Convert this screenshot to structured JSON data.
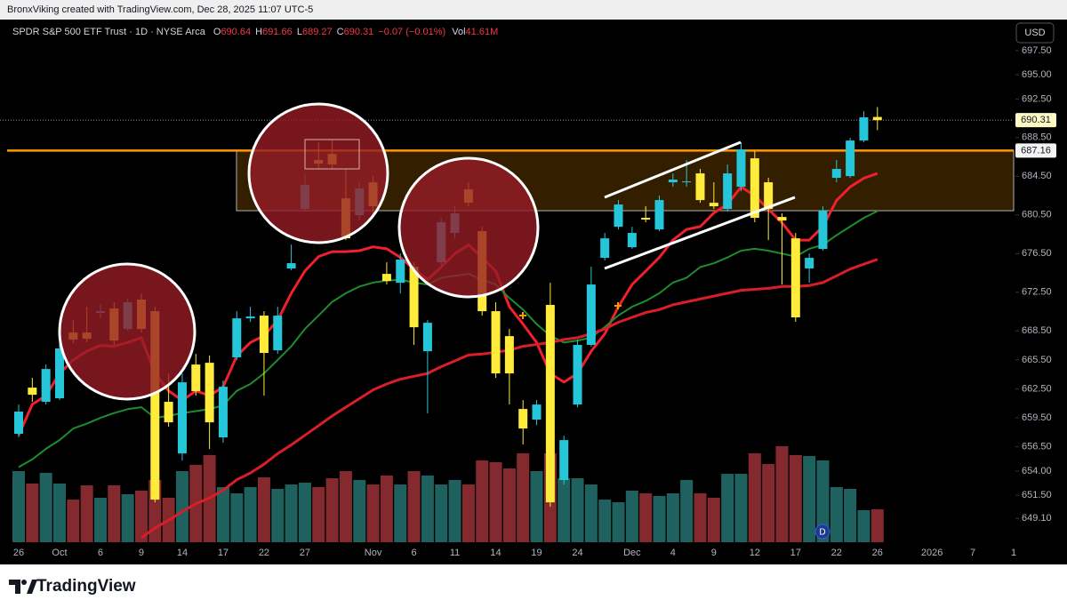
{
  "header": {
    "attribution": "BronxViking created with TradingView.com, Dec 28, 2025 11:07 UTC-5"
  },
  "footer": {
    "brand": "TradingView"
  },
  "chart_data": {
    "type": "candlestick",
    "title": "SPDR S&P 500 ETF Trust · 1D · NYSE Arca",
    "currency": "USD",
    "legend": {
      "open_label": "O",
      "high_label": "H",
      "low_label": "L",
      "close_label": "C",
      "change": "−0.07 (−0.01%)",
      "volume_label": "Vol",
      "volume": "41.61M"
    },
    "categories": [
      "26",
      null,
      null,
      "Oct",
      null,
      null,
      "6",
      null,
      null,
      "9",
      null,
      null,
      "14",
      null,
      null,
      "17",
      null,
      null,
      "22",
      null,
      null,
      "27",
      null,
      null,
      null,
      null,
      "Nov",
      null,
      null,
      "6",
      null,
      null,
      "11",
      null,
      null,
      "14",
      null,
      null,
      "19",
      null,
      null,
      "24",
      null,
      null,
      null,
      "Dec",
      null,
      null,
      "4",
      null,
      null,
      "9",
      null,
      null,
      "12",
      null,
      null,
      "17",
      null,
      null,
      "22",
      null,
      null,
      "26"
    ],
    "future_categories": [
      null,
      null,
      null,
      "2026",
      null,
      null,
      "7",
      null,
      null,
      "1"
    ],
    "open": [
      657.85,
      662.63,
      661.16,
      661.53,
      668.33,
      668.33,
      670.36,
      670.82,
      668.7,
      671.74,
      670.54,
      661.16,
      655.82,
      665.02,
      665.2,
      657.48,
      665.76,
      669.8,
      670.08,
      666.49,
      674.96,
      681.12,
      686.18,
      686.82,
      682.22,
      680.48,
      683.88,
      674.4,
      673.48,
      675.14,
      666.4,
      675.6,
      678.64,
      683.14,
      678.82,
      670.54,
      667.96,
      660.42,
      659.32,
      671.19,
      653.06,
      660.88,
      667.05,
      676.06,
      679.28,
      677.16,
      680.2,
      679.0,
      683.88,
      683.88,
      684.8,
      681.76,
      681.12,
      683.42,
      686.36,
      683.88,
      680.29,
      678.08,
      674.96,
      676.98,
      684.34,
      684.52,
      688.2,
      690.64
    ],
    "high": [
      660.88,
      663.64,
      665.02,
      667.32,
      669.62,
      671.0,
      671.19,
      671.46,
      671.83,
      672.38,
      671.0,
      664.1,
      664.1,
      666.12,
      665.94,
      663.36,
      670.54,
      671.0,
      670.54,
      671.0,
      677.44,
      684.8,
      688.02,
      688.3,
      685.26,
      683.88,
      684.52,
      675.6,
      676.52,
      675.6,
      669.62,
      680.2,
      681.4,
      683.88,
      679.28,
      671.46,
      668.7,
      661.34,
      661.34,
      673.48,
      657.66,
      667.6,
      675.14,
      678.64,
      682.04,
      679.28,
      681.4,
      682.5,
      684.8,
      686.18,
      685.26,
      683.88,
      685.72,
      688.02,
      687.1,
      684.34,
      680.66,
      678.64,
      676.52,
      681.4,
      686.18,
      688.48,
      691.24,
      691.66
    ],
    "low": [
      657.48,
      661.16,
      660.88,
      661.34,
      667.23,
      667.32,
      669.8,
      667.05,
      668.52,
      668.33,
      650.76,
      658.58,
      655.08,
      661.8,
      656.28,
      656.92,
      665.48,
      669.44,
      661.8,
      666.12,
      674.77,
      680.84,
      685.26,
      685.26,
      677.9,
      679.92,
      680.66,
      673.3,
      672.38,
      667.05,
      659.96,
      675.14,
      678.08,
      681.4,
      670.08,
      663.64,
      660.88,
      656.74,
      658.76,
      650.3,
      652.6,
      660.6,
      666.86,
      675.78,
      679.0,
      676.98,
      679.74,
      678.82,
      683.42,
      683.42,
      681.76,
      681.12,
      680.84,
      682.96,
      679.74,
      677.9,
      673.3,
      669.44,
      673.48,
      676.8,
      683.88,
      684.34,
      688.02,
      689.27
    ],
    "close": [
      660.15,
      661.89,
      664.56,
      666.68,
      667.6,
      667.69,
      670.54,
      667.5,
      671.46,
      668.7,
      651.04,
      659.04,
      663.18,
      662.26,
      659.04,
      662.72,
      669.8,
      669.99,
      666.22,
      670.08,
      675.51,
      683.6,
      685.81,
      685.72,
      678.08,
      683.24,
      681.4,
      673.67,
      675.88,
      668.88,
      669.34,
      679.74,
      680.66,
      681.76,
      670.54,
      664.1,
      664.1,
      658.4,
      660.88,
      650.76,
      657.2,
      667.05,
      673.3,
      678.08,
      681.58,
      678.64,
      680.02,
      682.04,
      684.16,
      683.97,
      682.04,
      681.4,
      684.8,
      687.28,
      680.2,
      681.12,
      679.92,
      669.9,
      676.06,
      680.94,
      685.26,
      688.2,
      690.6,
      690.31
    ],
    "up_color": "#26c6da",
    "down_color": "#ffeb3b",
    "volume": {
      "up_color": "#1f615e",
      "down_color": "#842a2f",
      "values": [
        90.0,
        74.3,
        87.8,
        74.3,
        54.0,
        72.0,
        56.3,
        72.0,
        60.8,
        65.3,
        78.8,
        56.3,
        90.0,
        97.9,
        110.3,
        69.8,
        61.9,
        69.8,
        82.1,
        67.5,
        73.1,
        75.4,
        69.8,
        81.0,
        90.0,
        78.8,
        73.1,
        84.4,
        73.1,
        90.0,
        84.4,
        73.1,
        78.8,
        73.1,
        103.5,
        101.3,
        93.4,
        112.5,
        90.0,
        112.5,
        81.0,
        81.0,
        73.1,
        54.0,
        50.6,
        65.3,
        61.9,
        58.5,
        61.9,
        78.8,
        61.9,
        56.3,
        86.6,
        86.6,
        112.5,
        99.0,
        121.5,
        110.3,
        109.1,
        103.5,
        69.8,
        67.5,
        40.5,
        41.61
      ]
    },
    "lines": [
      {
        "color": "#f0202d",
        "width": 3,
        "values": [
          657.7,
          660.9,
          661.8,
          664.1,
          665.5,
          666.4,
          667.0,
          666.9,
          667.3,
          667.8,
          664.1,
          662.3,
          661.3,
          662.3,
          661.8,
          662.7,
          665.9,
          667.3,
          668.0,
          669.6,
          672.4,
          674.7,
          676.2,
          676.7,
          676.7,
          676.8,
          677.2,
          677.0,
          676.1,
          674.9,
          673.8,
          675.1,
          676.5,
          677.4,
          676.1,
          674.7,
          671.0,
          669.2,
          667.3,
          664.1,
          663.2,
          664.1,
          666.4,
          668.2,
          671.0,
          673.3,
          674.7,
          676.1,
          677.9,
          679.0,
          679.3,
          680.7,
          681.6,
          683.4,
          682.5,
          681.1,
          679.7,
          677.9,
          677.9,
          679.3,
          682.0,
          683.4,
          684.3,
          684.8
        ]
      },
      {
        "color": "#1e8c2e",
        "width": 2,
        "values": [
          654.4,
          655.2,
          656.3,
          657.2,
          658.4,
          658.9,
          659.5,
          660.0,
          660.4,
          660.6,
          659.5,
          659.7,
          660.0,
          660.2,
          660.4,
          660.8,
          662.3,
          663.0,
          664.1,
          665.5,
          666.9,
          668.7,
          670.1,
          671.5,
          672.4,
          673.1,
          673.5,
          673.7,
          673.8,
          673.5,
          673.3,
          674.0,
          674.2,
          674.4,
          673.8,
          673.3,
          671.9,
          670.7,
          669.2,
          668.0,
          667.3,
          667.5,
          667.8,
          668.9,
          670.1,
          671.0,
          671.6,
          672.4,
          673.5,
          674.0,
          675.1,
          675.5,
          676.1,
          676.8,
          677.0,
          676.8,
          676.5,
          676.2,
          677.0,
          677.4,
          678.4,
          679.3,
          680.2,
          680.9
        ]
      },
      {
        "color": "#d81e28",
        "width": 3,
        "values": [
          null,
          null,
          null,
          null,
          null,
          null,
          null,
          null,
          null,
          647.1,
          648.1,
          648.9,
          649.8,
          650.6,
          651.2,
          652.0,
          653.1,
          653.8,
          654.7,
          655.8,
          656.7,
          657.7,
          658.7,
          659.7,
          660.6,
          661.5,
          662.4,
          663.0,
          663.5,
          663.8,
          664.1,
          664.8,
          665.4,
          666.0,
          666.1,
          666.3,
          666.5,
          666.9,
          667.1,
          667.3,
          667.6,
          667.8,
          668.2,
          668.7,
          669.4,
          669.9,
          670.4,
          670.7,
          671.2,
          671.5,
          671.8,
          672.1,
          672.4,
          672.7,
          672.8,
          672.9,
          673.1,
          673.1,
          673.2,
          673.5,
          674.2,
          674.9,
          675.4,
          675.9
        ]
      }
    ],
    "price_line": {
      "value": 687.16,
      "color": "#ff9800"
    },
    "zone": {
      "top": 687.16,
      "bottom": 680.94,
      "color": "#ff9800"
    },
    "dividend_label": "D",
    "ylim": [
      646.63,
      700.72
    ],
    "yticks": [
      {
        "value": 697.5,
        "label": "697.50"
      },
      {
        "value": 695.0,
        "label": "695.00"
      },
      {
        "value": 692.5,
        "label": "692.50"
      },
      {
        "value": 688.5,
        "label": "688.50"
      },
      {
        "value": 684.5,
        "label": "684.50"
      },
      {
        "value": 680.5,
        "label": "680.50"
      },
      {
        "value": 676.5,
        "label": "676.50"
      },
      {
        "value": 672.5,
        "label": "672.50"
      },
      {
        "value": 668.5,
        "label": "668.50"
      },
      {
        "value": 665.5,
        "label": "665.50"
      },
      {
        "value": 662.5,
        "label": "662.50"
      },
      {
        "value": 659.5,
        "label": "659.50"
      },
      {
        "value": 656.5,
        "label": "656.50"
      },
      {
        "value": 654.0,
        "label": "654.00"
      },
      {
        "value": 651.5,
        "label": "651.50"
      },
      {
        "value": 649.1,
        "label": "649.10"
      }
    ]
  }
}
